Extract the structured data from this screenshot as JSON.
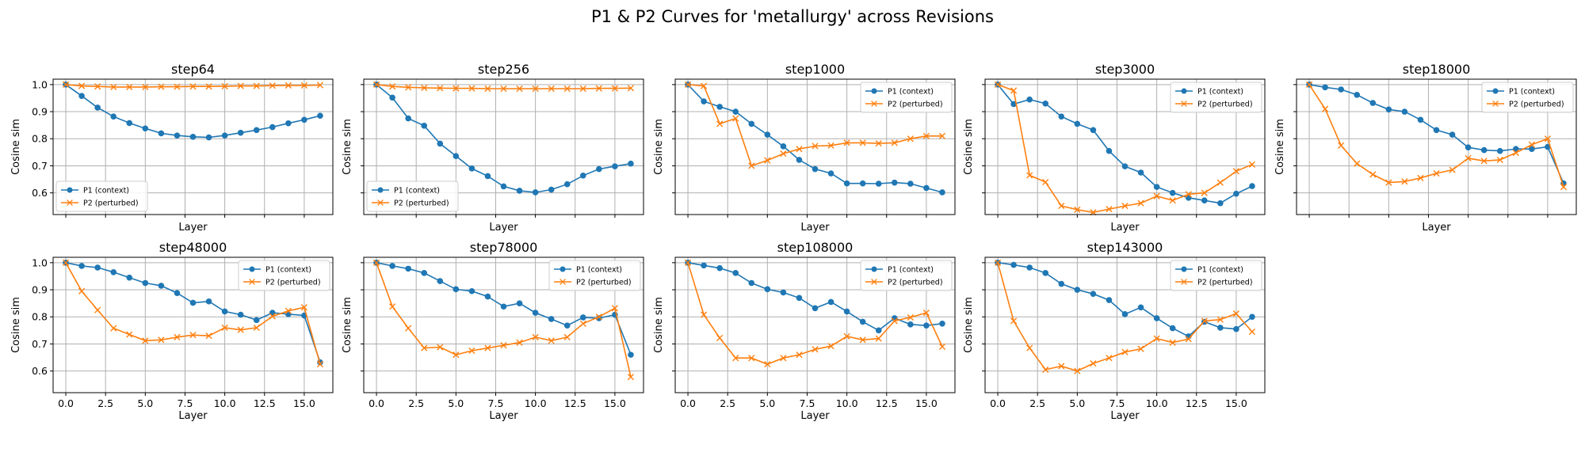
{
  "suptitle": "P1 & P2 Curves for 'metallurgy' across Revisions",
  "chart_data": {
    "type": "line",
    "title": "P1 & P2 Curves for 'metallurgy' across Revisions",
    "xlabel": "Layer",
    "ylabel": "Cosine sim",
    "xlim": [
      -0.8,
      16.8
    ],
    "ylim": [
      0.52,
      1.02
    ],
    "xticks": [
      0.0,
      2.5,
      5.0,
      7.5,
      10.0,
      12.5,
      15.0
    ],
    "xtick_labels": [
      "0.0",
      "2.5",
      "5.0",
      "7.5",
      "10.0",
      "12.5",
      "15.0"
    ],
    "yticks": [
      0.6,
      0.7,
      0.8,
      0.9,
      1.0
    ],
    "ytick_labels": [
      "0.6",
      "0.7",
      "0.8",
      "0.9",
      "1.0"
    ],
    "sharex": true,
    "sharey": true,
    "grid": true,
    "x": [
      0,
      1,
      2,
      3,
      4,
      5,
      6,
      7,
      8,
      9,
      10,
      11,
      12,
      13,
      14,
      15,
      16
    ],
    "colors": {
      "P1 (context)": "#1f77b4",
      "P2 (perturbed)": "#ff7f0e"
    },
    "markers": {
      "P1 (context)": "circle",
      "P2 (perturbed)": "x"
    },
    "panels": [
      {
        "title": "step64",
        "legend": "lower-left",
        "series": [
          {
            "name": "P1 (context)",
            "values": [
              1.0,
              0.958,
              0.915,
              0.882,
              0.858,
              0.838,
              0.82,
              0.812,
              0.807,
              0.805,
              0.812,
              0.822,
              0.832,
              0.843,
              0.857,
              0.87,
              0.885
            ]
          },
          {
            "name": "P2 (perturbed)",
            "values": [
              1.0,
              0.995,
              0.993,
              0.991,
              0.991,
              0.991,
              0.992,
              0.992,
              0.993,
              0.993,
              0.994,
              0.995,
              0.995,
              0.996,
              0.997,
              0.997,
              0.998
            ]
          }
        ]
      },
      {
        "title": "step256",
        "legend": "lower-left",
        "series": [
          {
            "name": "P1 (context)",
            "values": [
              1.0,
              0.952,
              0.875,
              0.848,
              0.782,
              0.736,
              0.69,
              0.662,
              0.624,
              0.608,
              0.602,
              0.612,
              0.632,
              0.664,
              0.688,
              0.698,
              0.708
            ]
          },
          {
            "name": "P2 (perturbed)",
            "values": [
              1.0,
              0.993,
              0.99,
              0.988,
              0.987,
              0.986,
              0.986,
              0.985,
              0.985,
              0.985,
              0.985,
              0.985,
              0.985,
              0.985,
              0.986,
              0.986,
              0.987
            ]
          }
        ]
      },
      {
        "title": "step1000",
        "legend": "upper-right",
        "series": [
          {
            "name": "P1 (context)",
            "values": [
              1.0,
              0.938,
              0.918,
              0.9,
              0.855,
              0.815,
              0.772,
              0.722,
              0.688,
              0.672,
              0.635,
              0.635,
              0.634,
              0.638,
              0.634,
              0.618,
              0.602
            ]
          },
          {
            "name": "P2 (perturbed)",
            "values": [
              1.0,
              0.995,
              0.855,
              0.875,
              0.7,
              0.72,
              0.745,
              0.762,
              0.773,
              0.775,
              0.785,
              0.785,
              0.783,
              0.785,
              0.8,
              0.81,
              0.81
            ]
          }
        ]
      },
      {
        "title": "step3000",
        "legend": "upper-right",
        "series": [
          {
            "name": "P1 (context)",
            "values": [
              1.0,
              0.928,
              0.945,
              0.93,
              0.882,
              0.855,
              0.832,
              0.755,
              0.698,
              0.675,
              0.622,
              0.6,
              0.582,
              0.572,
              0.562,
              0.597,
              0.625
            ]
          },
          {
            "name": "P2 (perturbed)",
            "values": [
              1.0,
              0.978,
              0.665,
              0.64,
              0.552,
              0.538,
              0.528,
              0.54,
              0.552,
              0.562,
              0.588,
              0.572,
              0.595,
              0.6,
              0.638,
              0.68,
              0.705
            ]
          }
        ]
      },
      {
        "title": "step18000",
        "legend": "upper-right",
        "series": [
          {
            "name": "P1 (context)",
            "values": [
              1.0,
              0.99,
              0.982,
              0.962,
              0.932,
              0.908,
              0.9,
              0.87,
              0.832,
              0.815,
              0.768,
              0.758,
              0.755,
              0.762,
              0.762,
              0.77,
              0.635
            ]
          },
          {
            "name": "P2 (perturbed)",
            "values": [
              1.0,
              0.91,
              0.775,
              0.708,
              0.668,
              0.638,
              0.642,
              0.655,
              0.672,
              0.685,
              0.728,
              0.718,
              0.722,
              0.748,
              0.778,
              0.8,
              0.622
            ]
          }
        ]
      },
      {
        "title": "step48000",
        "legend": "upper-right",
        "series": [
          {
            "name": "P1 (context)",
            "values": [
              1.0,
              0.988,
              0.982,
              0.965,
              0.945,
              0.925,
              0.915,
              0.888,
              0.852,
              0.857,
              0.82,
              0.808,
              0.788,
              0.815,
              0.81,
              0.805,
              0.632
            ]
          },
          {
            "name": "P2 (perturbed)",
            "values": [
              1.0,
              0.895,
              0.825,
              0.758,
              0.735,
              0.712,
              0.715,
              0.725,
              0.733,
              0.73,
              0.76,
              0.752,
              0.76,
              0.802,
              0.822,
              0.835,
              0.625
            ]
          }
        ]
      },
      {
        "title": "step78000",
        "legend": "upper-right",
        "series": [
          {
            "name": "P1 (context)",
            "values": [
              1.0,
              0.988,
              0.978,
              0.962,
              0.932,
              0.902,
              0.895,
              0.875,
              0.838,
              0.85,
              0.815,
              0.792,
              0.768,
              0.798,
              0.795,
              0.808,
              0.66
            ]
          },
          {
            "name": "P2 (perturbed)",
            "values": [
              1.0,
              0.838,
              0.758,
              0.685,
              0.688,
              0.66,
              0.675,
              0.685,
              0.695,
              0.705,
              0.725,
              0.712,
              0.725,
              0.775,
              0.8,
              0.832,
              0.578
            ]
          }
        ]
      },
      {
        "title": "step108000",
        "legend": "upper-right",
        "series": [
          {
            "name": "P1 (context)",
            "values": [
              1.0,
              0.99,
              0.98,
              0.962,
              0.925,
              0.902,
              0.89,
              0.87,
              0.832,
              0.855,
              0.82,
              0.782,
              0.75,
              0.795,
              0.772,
              0.768,
              0.775
            ]
          },
          {
            "name": "P2 (perturbed)",
            "values": [
              1.0,
              0.808,
              0.722,
              0.648,
              0.648,
              0.625,
              0.648,
              0.66,
              0.68,
              0.692,
              0.728,
              0.715,
              0.72,
              0.785,
              0.798,
              0.815,
              0.69
            ]
          }
        ]
      },
      {
        "title": "step143000",
        "legend": "upper-right",
        "series": [
          {
            "name": "P1 (context)",
            "values": [
              1.0,
              0.992,
              0.982,
              0.962,
              0.922,
              0.9,
              0.885,
              0.862,
              0.81,
              0.835,
              0.795,
              0.758,
              0.728,
              0.782,
              0.76,
              0.755,
              0.8
            ]
          },
          {
            "name": "P2 (perturbed)",
            "values": [
              1.0,
              0.785,
              0.685,
              0.605,
              0.618,
              0.6,
              0.628,
              0.648,
              0.67,
              0.682,
              0.72,
              0.705,
              0.718,
              0.785,
              0.79,
              0.812,
              0.745
            ]
          }
        ]
      }
    ]
  }
}
